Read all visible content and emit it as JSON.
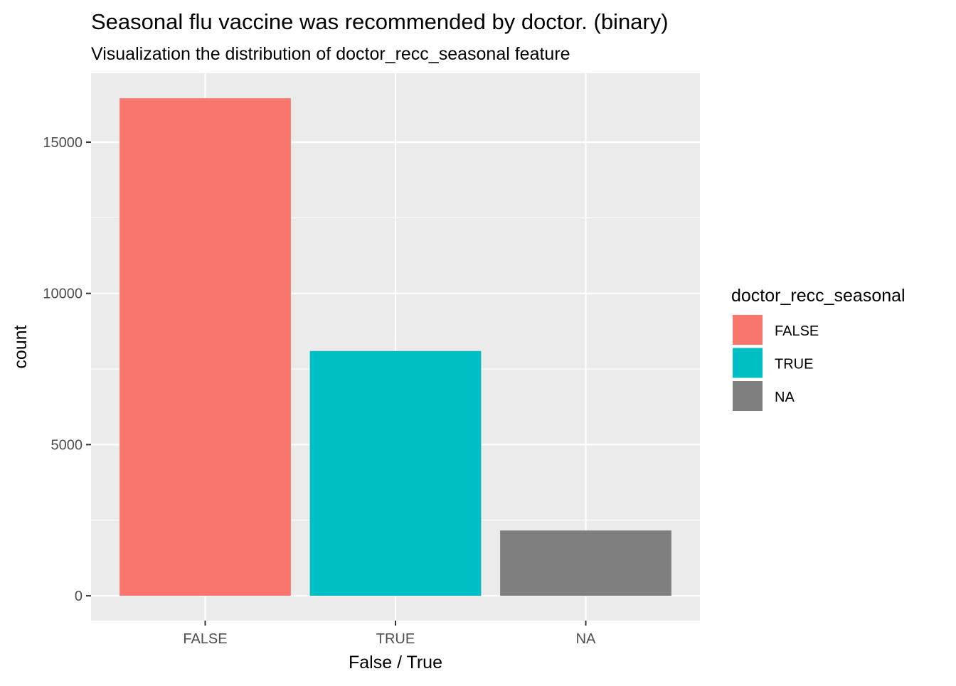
{
  "chart_data": {
    "type": "bar",
    "title": "Seasonal flu vaccine was recommended by doctor. (binary)",
    "subtitle": "Visualization the distribution of doctor_recc_seasonal feature",
    "xlabel": "False / True",
    "ylabel": "count",
    "categories": [
      "FALSE",
      "TRUE",
      "NA"
    ],
    "values": [
      16453,
      8094,
      2160
    ],
    "colors": [
      "#F8766D",
      "#00BFC4",
      "#7F7F7F"
    ],
    "ylim": [
      -820,
      17280
    ],
    "y_ticks": [
      0,
      5000,
      10000,
      15000
    ],
    "y_tick_labels": [
      "0",
      "5000",
      "10000",
      "15000"
    ],
    "grid": true,
    "panel_background": "#EBEBEB",
    "grid_color": "#FFFFFF",
    "legend": {
      "title": "doctor_recc_seasonal",
      "position": "right",
      "items": [
        {
          "label": "FALSE",
          "color": "#F8766D"
        },
        {
          "label": "TRUE",
          "color": "#00BFC4"
        },
        {
          "label": "NA",
          "color": "#7F7F7F"
        }
      ]
    }
  }
}
